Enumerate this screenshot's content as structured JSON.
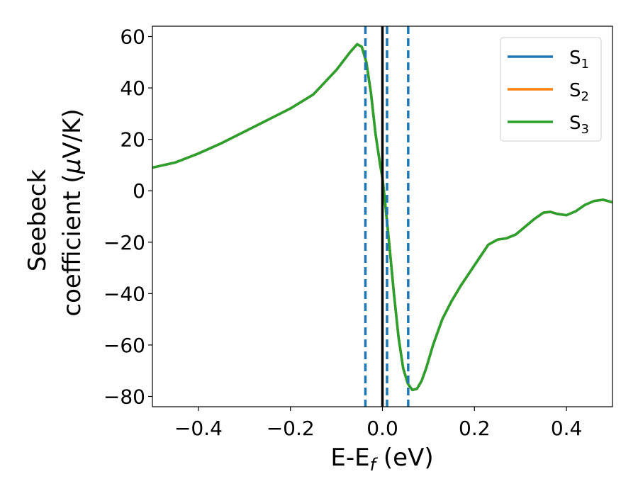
{
  "chart_data": {
    "type": "line",
    "xlabel": {
      "main": "E-E",
      "sub": "f",
      "tail": " (eV)"
    },
    "ylabel": {
      "line1": "Seebeck",
      "line2_pre": "coefficient  (",
      "mu": "μ",
      "line2_post": "V/K)"
    },
    "xlim": [
      -0.5,
      0.5
    ],
    "ylim": [
      -84,
      64
    ],
    "x_ticks": [
      -0.4,
      -0.2,
      0.0,
      0.2,
      0.4
    ],
    "x_tick_labels": [
      "−0.4",
      "−0.2",
      "0.0",
      "0.2",
      "0.4"
    ],
    "y_ticks": [
      -80,
      -60,
      -40,
      -20,
      0,
      20,
      40,
      60
    ],
    "y_tick_labels": [
      "−80",
      "−60",
      "−40",
      "−20",
      "0",
      "20",
      "40",
      "60"
    ],
    "grid": false,
    "legend_position": "top-right",
    "vertical_lines": [
      {
        "x": -0.037,
        "style": "dashed",
        "color": "#1f77b4"
      },
      {
        "x": 0.0,
        "style": "solid",
        "color": "#000000"
      },
      {
        "x": 0.01,
        "style": "dashed",
        "color": "#1f77b4"
      },
      {
        "x": 0.056,
        "style": "dashed",
        "color": "#1f77b4"
      }
    ],
    "series": [
      {
        "name": {
          "base": "S",
          "sub": "1"
        },
        "color": "#1f77b4",
        "x": [
          -0.5,
          -0.45,
          -0.4,
          -0.35,
          -0.3,
          -0.25,
          -0.2,
          -0.15,
          -0.1,
          -0.07,
          -0.055,
          -0.045,
          -0.035,
          -0.025,
          -0.015,
          -0.005,
          0.0,
          0.005,
          0.015,
          0.025,
          0.035,
          0.045,
          0.055,
          0.065,
          0.075,
          0.085,
          0.095,
          0.11,
          0.13,
          0.15,
          0.17,
          0.2,
          0.23,
          0.25,
          0.27,
          0.29,
          0.31,
          0.33,
          0.35,
          0.365,
          0.38,
          0.4,
          0.42,
          0.44,
          0.46,
          0.48,
          0.5
        ],
        "y": [
          9,
          11,
          14.5,
          18.5,
          23,
          27.5,
          32,
          37.5,
          47,
          54,
          57,
          56,
          50,
          38,
          22,
          10,
          5,
          -3,
          -21,
          -40,
          -57,
          -69,
          -75,
          -77.5,
          -77,
          -74,
          -69,
          -60,
          -50,
          -43,
          -37,
          -29,
          -21,
          -19,
          -18.5,
          -17,
          -14,
          -11,
          -8.5,
          -8.2,
          -9,
          -9.5,
          -8,
          -5.5,
          -4,
          -3.5,
          -4.5
        ]
      },
      {
        "name": {
          "base": "S",
          "sub": "2"
        },
        "color": "#ff7f0e",
        "x": [
          -0.5,
          -0.45,
          -0.4,
          -0.35,
          -0.3,
          -0.25,
          -0.2,
          -0.15,
          -0.1,
          -0.07,
          -0.055,
          -0.045,
          -0.035,
          -0.025,
          -0.015,
          -0.005,
          0.0,
          0.005,
          0.015,
          0.025,
          0.035,
          0.045,
          0.055,
          0.065,
          0.075,
          0.085,
          0.095,
          0.11,
          0.13,
          0.15,
          0.17,
          0.2,
          0.23,
          0.25,
          0.27,
          0.29,
          0.31,
          0.33,
          0.35,
          0.365,
          0.38,
          0.4,
          0.42,
          0.44,
          0.46,
          0.48,
          0.5
        ],
        "y": [
          9,
          11,
          14.5,
          18.5,
          23,
          27.5,
          32,
          37.5,
          47,
          54,
          57,
          56,
          50,
          38,
          22,
          10,
          5,
          -3,
          -21,
          -40,
          -57,
          -69,
          -75,
          -77.5,
          -77,
          -74,
          -69,
          -60,
          -50,
          -43,
          -37,
          -29,
          -21,
          -19,
          -18.5,
          -17,
          -14,
          -11,
          -8.5,
          -8.2,
          -9,
          -9.5,
          -8,
          -5.5,
          -4,
          -3.5,
          -4.5
        ]
      },
      {
        "name": {
          "base": "S",
          "sub": "3"
        },
        "color": "#2ca02c",
        "x": [
          -0.5,
          -0.45,
          -0.4,
          -0.35,
          -0.3,
          -0.25,
          -0.2,
          -0.15,
          -0.1,
          -0.07,
          -0.055,
          -0.045,
          -0.035,
          -0.025,
          -0.015,
          -0.005,
          0.0,
          0.005,
          0.015,
          0.025,
          0.035,
          0.045,
          0.055,
          0.065,
          0.075,
          0.085,
          0.095,
          0.11,
          0.13,
          0.15,
          0.17,
          0.2,
          0.23,
          0.25,
          0.27,
          0.29,
          0.31,
          0.33,
          0.35,
          0.365,
          0.38,
          0.4,
          0.42,
          0.44,
          0.46,
          0.48,
          0.5
        ],
        "y": [
          9,
          11,
          14.5,
          18.5,
          23,
          27.5,
          32,
          37.5,
          47,
          54,
          57,
          56,
          50,
          38,
          22,
          10,
          5,
          -3,
          -21,
          -40,
          -57,
          -69,
          -75,
          -77.5,
          -77,
          -74,
          -69,
          -60,
          -50,
          -43,
          -37,
          -29,
          -21,
          -19,
          -18.5,
          -17,
          -14,
          -11,
          -8.5,
          -8.2,
          -9,
          -9.5,
          -8,
          -5.5,
          -4,
          -3.5,
          -4.5
        ]
      }
    ]
  }
}
